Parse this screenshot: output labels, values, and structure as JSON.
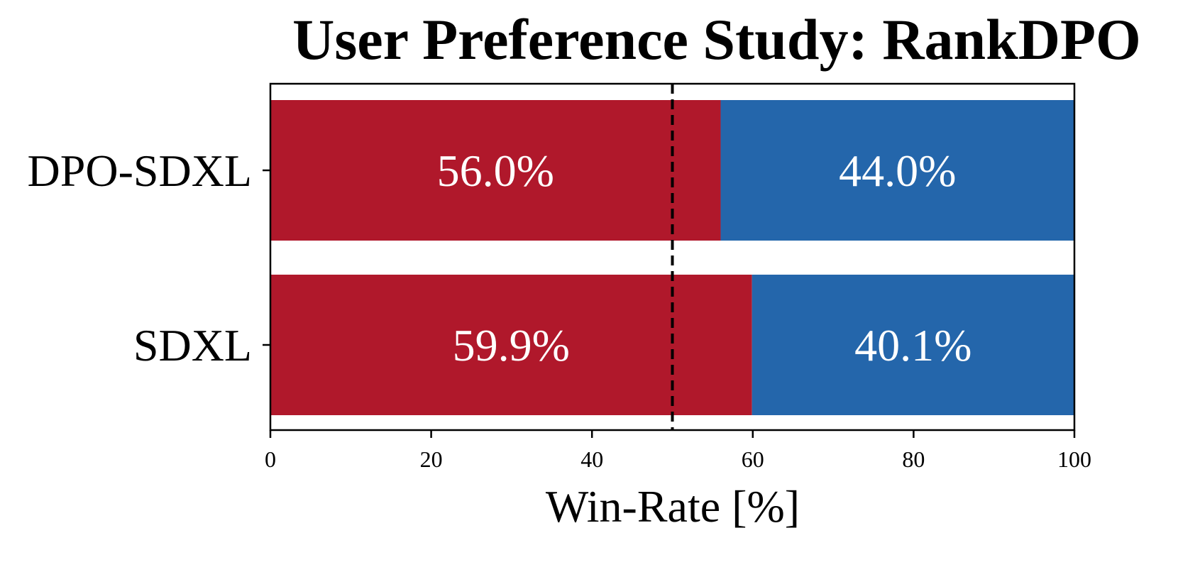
{
  "chart_data": {
    "type": "bar",
    "orientation": "horizontal",
    "stacked": true,
    "title": "User Preference Study: RankDPO",
    "xlabel": "Win-Rate [%]",
    "ylabel": "",
    "xlim": [
      0,
      100
    ],
    "x_ticks": [
      "0",
      "20",
      "40",
      "60",
      "80",
      "100"
    ],
    "categories": [
      "DPO-SDXL",
      "SDXL"
    ],
    "series": [
      {
        "color": "#b0182b",
        "values": [
          56.0,
          59.9
        ],
        "labels": [
          "56.0%",
          "59.9%"
        ]
      },
      {
        "color": "#2466ab",
        "values": [
          44.0,
          40.1
        ],
        "labels": [
          "44.0%",
          "40.1%"
        ]
      }
    ],
    "reference_line": {
      "x": 50,
      "style": "dashed",
      "color": "#000000"
    },
    "grid": false,
    "legend": "none"
  }
}
